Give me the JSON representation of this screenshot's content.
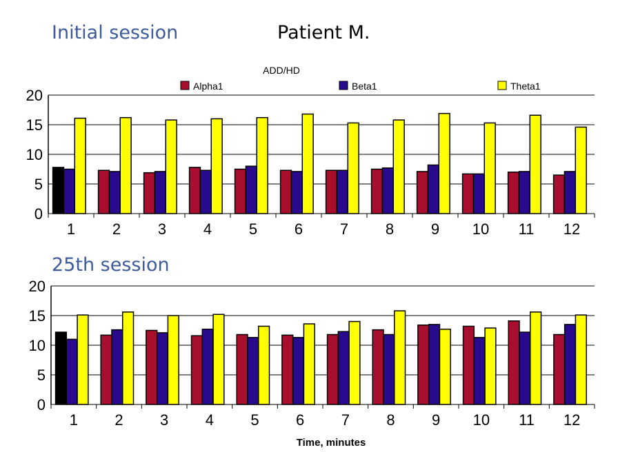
{
  "slide": {
    "title_left": "Initial session",
    "title_center": "Patient M.",
    "subtitle_bottom": "25th session",
    "xlabel": "Time, minutes",
    "chart_top_label": "ADD/HD"
  },
  "colors": {
    "alpha": "#a80f2e",
    "beta": "#2a0a8c",
    "theta": "#ffff00",
    "highlight": "#000000",
    "title": "#3d5a9c"
  },
  "chart_data": [
    {
      "type": "bar",
      "title": "Initial session",
      "subtitle": "ADD/HD",
      "categories": [
        "1",
        "2",
        "3",
        "4",
        "5",
        "6",
        "7",
        "8",
        "9",
        "10",
        "11",
        "12"
      ],
      "series": [
        {
          "name": "Alpha1",
          "values": [
            7.8,
            7.3,
            6.9,
            7.8,
            7.5,
            7.3,
            7.3,
            7.5,
            7.1,
            6.7,
            7.0,
            6.5
          ]
        },
        {
          "name": "Beta1",
          "values": [
            7.5,
            7.1,
            7.1,
            7.3,
            8.0,
            7.1,
            7.3,
            7.7,
            8.2,
            6.7,
            7.1,
            7.1
          ]
        },
        {
          "name": "Theta1",
          "values": [
            16.1,
            16.2,
            15.8,
            16.0,
            16.2,
            16.8,
            15.3,
            15.8,
            16.9,
            15.3,
            16.6,
            14.6
          ]
        }
      ],
      "ylim": [
        0,
        20
      ],
      "yticks": [
        "0",
        "5",
        "10",
        "15",
        "20"
      ],
      "grid": true,
      "legend": "top",
      "highlight": "first Alpha1 bar drawn in black"
    },
    {
      "type": "bar",
      "title": "25th session",
      "xlabel": "Time, minutes",
      "categories": [
        "1",
        "2",
        "3",
        "4",
        "5",
        "6",
        "7",
        "8",
        "9",
        "10",
        "11",
        "12"
      ],
      "series": [
        {
          "values": [
            12.2,
            11.7,
            12.5,
            11.6,
            11.8,
            11.7,
            11.8,
            12.6,
            13.4,
            13.2,
            14.1,
            11.8
          ]
        },
        {
          "values": [
            11.0,
            12.6,
            12.1,
            12.7,
            11.3,
            11.3,
            12.3,
            11.8,
            13.5,
            11.3,
            12.2,
            13.5
          ]
        },
        {
          "values": [
            15.1,
            15.6,
            15.0,
            15.2,
            13.2,
            13.6,
            14.0,
            15.8,
            12.7,
            12.9,
            15.6,
            15.1
          ]
        }
      ],
      "ylim": [
        0,
        20
      ],
      "yticks": [
        "0",
        "5",
        "10",
        "15",
        "20"
      ],
      "grid": true,
      "highlight": "first Alpha1 bar drawn in black"
    }
  ]
}
